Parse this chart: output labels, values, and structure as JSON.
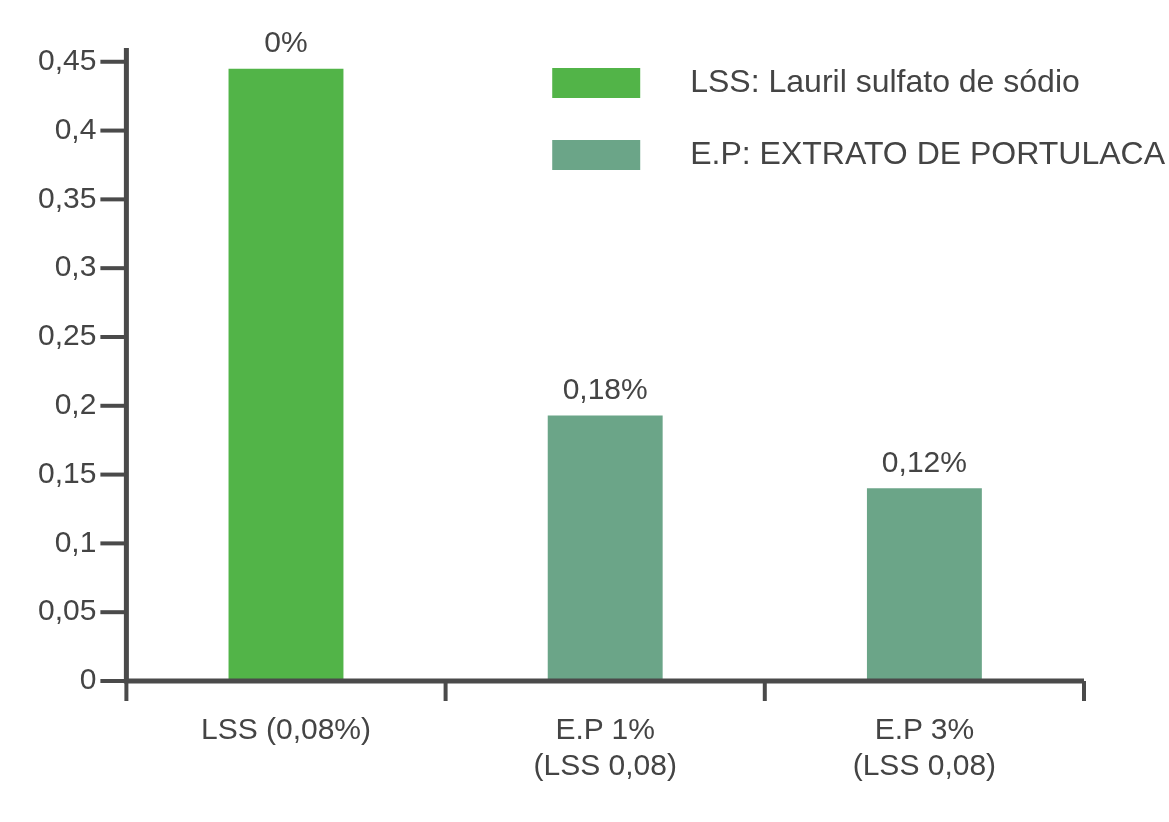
{
  "chart_data": {
    "type": "bar",
    "categories": [
      "LSS (0,08%)",
      "E.P 1%\n(LSS 0,08)",
      "E.P 3%\n(LSS 0,08)"
    ],
    "series": [
      {
        "name": "LSS: Lauril sulfato de sódio",
        "color": "#52b448",
        "values": [
          0.445,
          null,
          null
        ]
      },
      {
        "name": "E.P: EXTRATO DE PORTULACA",
        "color": "#6ba588",
        "values": [
          null,
          0.193,
          0.14
        ]
      }
    ],
    "annotations": [
      {
        "text": "0%",
        "x": "LSS (0,08%)",
        "y": 0.445
      },
      {
        "text": "0,18%",
        "x": "E.P 1%\n(LSS 0,08)",
        "y": 0.193
      },
      {
        "text": "0,12%",
        "x": "E.P 3%\n(LSS 0,08)",
        "y": 0.14
      }
    ],
    "ylim": [
      0,
      0.46
    ],
    "yticks": [
      {
        "value": 0,
        "label": "0"
      },
      {
        "value": 0.05,
        "label": "0,05"
      },
      {
        "value": 0.1,
        "label": "0,1"
      },
      {
        "value": 0.15,
        "label": "0,15"
      },
      {
        "value": 0.2,
        "label": "0,2"
      },
      {
        "value": 0.25,
        "label": "0,25"
      },
      {
        "value": 0.3,
        "label": "0,3"
      },
      {
        "value": 0.35,
        "label": "0,35"
      },
      {
        "value": 0.4,
        "label": "0,4"
      },
      {
        "value": 0.45,
        "label": "0,45"
      }
    ],
    "grid": false,
    "legend": "top right"
  }
}
